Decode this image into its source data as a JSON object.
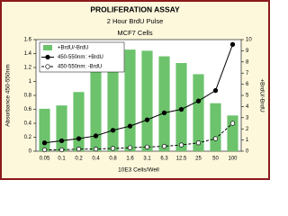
{
  "chart_data": {
    "type": "bar",
    "title": "PROLIFERATION ASSAY",
    "subtitle": "2 Hour BrdU Pulse",
    "annotation": "MCF7 Cells",
    "x_label": "10E3 Cells/Well",
    "y_label": "Absorbance 450-550nm",
    "y2_label": "+BrdU/-BrdU",
    "categories": [
      "0.05",
      "0.1",
      "0.2",
      "0.4",
      "0.8",
      "1.6",
      "3.1",
      "6.3",
      "12.5",
      "25",
      "50",
      "100"
    ],
    "series": [
      {
        "name": "+BrdU/-BrdU",
        "type": "bar",
        "axis": "y2",
        "color": "#6cc36c",
        "values": [
          3.8,
          4.1,
          5.3,
          7.2,
          9.2,
          9.1,
          9.0,
          8.5,
          7.9,
          6.9,
          4.3,
          3.2
        ]
      },
      {
        "name": "450-550nm: +BrdU",
        "type": "line",
        "color": "#000000",
        "marker": "filled",
        "line_style": "solid",
        "values": [
          0.12,
          0.15,
          0.18,
          0.22,
          0.3,
          0.36,
          0.45,
          0.55,
          0.6,
          0.72,
          0.87,
          1.53
        ]
      },
      {
        "name": "450-550nm: -BrdU",
        "type": "line",
        "color": "#000000",
        "marker": "open",
        "line_style": "dashed",
        "values": [
          0.02,
          0.02,
          0.03,
          0.03,
          0.04,
          0.05,
          0.06,
          0.07,
          0.09,
          0.12,
          0.18,
          0.4
        ]
      }
    ],
    "ylim": [
      0,
      1.6
    ],
    "yticks": [
      0,
      0.2,
      0.4,
      0.6,
      0.8,
      1,
      1.2,
      1.4,
      1.6
    ],
    "y2lim": [
      0,
      10
    ],
    "y2ticks": [
      0,
      1,
      2,
      3,
      4,
      5,
      6,
      7,
      8,
      9,
      10
    ],
    "legend": "top-left"
  }
}
